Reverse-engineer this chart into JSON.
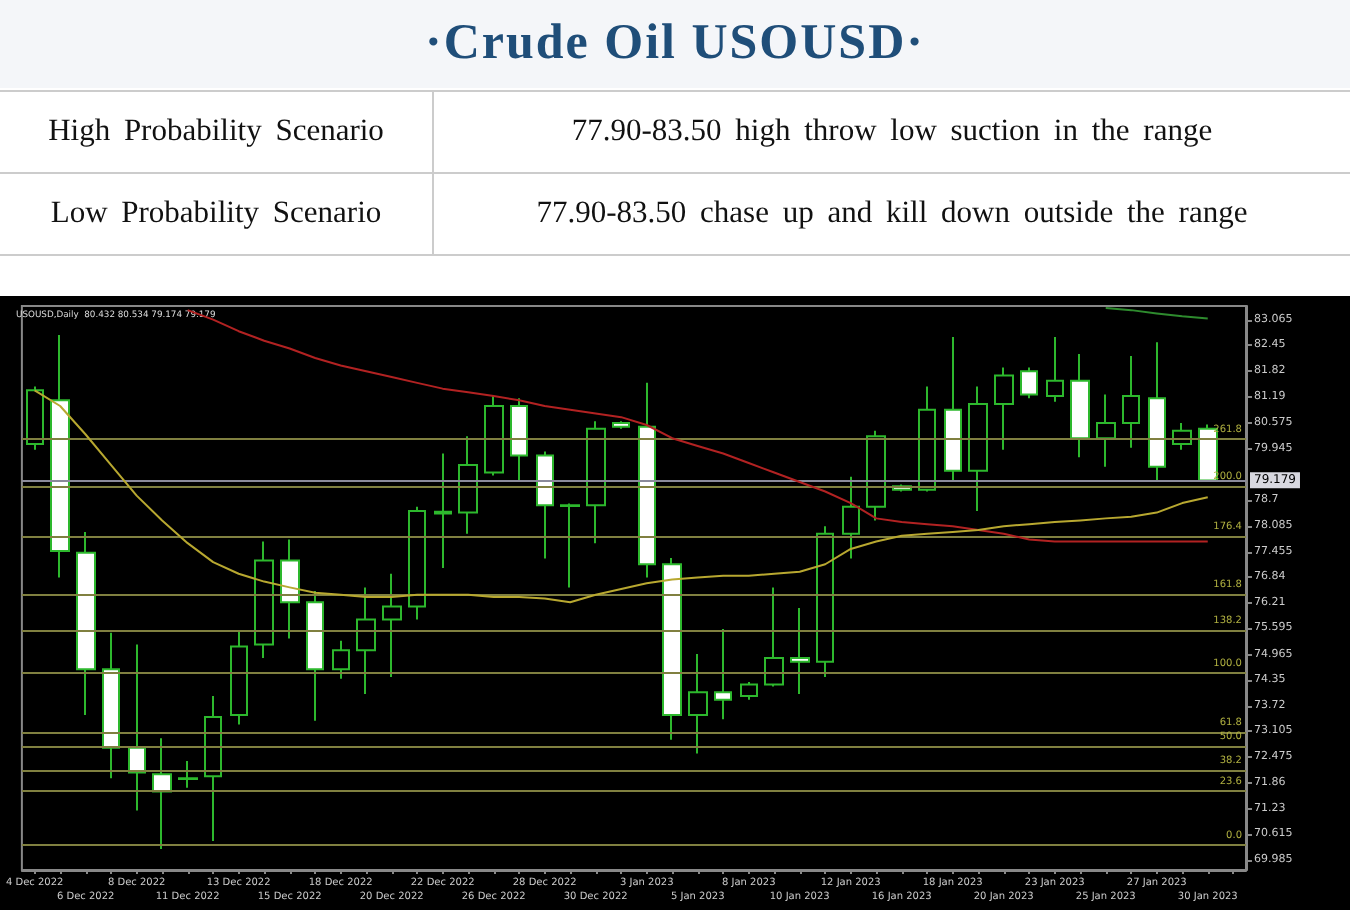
{
  "chart_data": {
    "type": "candlestick",
    "title": "·Crude  Oil  USOUSD·",
    "annotations": [
      "High Probability Scenario",
      "77.90-83.50 high throw low suction in the range",
      "Low Probability Scenario",
      "77.90-83.50 chase up and kill down outside the range",
      "USOUSD,Daily  80.432 80.534 79.174 79.179",
      {
        "text": "261.8",
        "y": 80.18
      },
      {
        "text": "200.0",
        "y": 79.05
      },
      {
        "text": "176.4",
        "y": 77.83
      },
      {
        "text": "161.8",
        "y": 76.44
      },
      {
        "text": "138.2",
        "y": 75.55
      },
      {
        "text": "100.0",
        "y": 74.52
      },
      {
        "text": "61.8",
        "y": 73.1
      },
      {
        "text": "50.0",
        "y": 72.75
      },
      {
        "text": "38.2",
        "y": 72.18
      },
      {
        "text": "23.6",
        "y": 71.67
      },
      {
        "text": "0.0",
        "y": 70.36
      }
    ],
    "categories": [
      "4 Dec 2022",
      null,
      "6 Dec 2022",
      null,
      "8 Dec 2022",
      null,
      "11 Dec 2022",
      null,
      "13 Dec 2022",
      null,
      "15 Dec 2022",
      null,
      "18 Dec 2022",
      null,
      "20 Dec 2022",
      null,
      "22 Dec 2022",
      null,
      "26 Dec 2022",
      null,
      "28 Dec 2022",
      null,
      "30 Dec 2022",
      null,
      "3 Jan 2023",
      null,
      "5 Jan 2023",
      null,
      "8 Jan 2023",
      null,
      "10 Jan 2023",
      null,
      "12 Jan 2023",
      null,
      "16 Jan 2023",
      null,
      "18 Jan 2023",
      null,
      "20 Jan 2023",
      null,
      "23 Jan 2023",
      null,
      "25 Jan 2023",
      null,
      "27 Jan 2023",
      null,
      "30 Jan 2023"
    ],
    "ohlc": [
      [
        80.06,
        81.45,
        79.92,
        81.36
      ],
      [
        81.12,
        82.7,
        76.83,
        77.47
      ],
      [
        77.43,
        77.93,
        73.5,
        74.61
      ],
      [
        74.61,
        75.49,
        71.97,
        72.71
      ],
      [
        72.71,
        75.21,
        71.19,
        72.11
      ],
      [
        72.07,
        72.94,
        70.26,
        71.65
      ],
      [
        71.95,
        72.39,
        71.74,
        71.97
      ],
      [
        72.02,
        73.96,
        70.45,
        73.45
      ],
      [
        73.5,
        75.53,
        73.27,
        75.16
      ],
      [
        75.21,
        77.7,
        74.88,
        77.24
      ],
      [
        77.24,
        77.75,
        75.35,
        76.23
      ],
      [
        76.23,
        76.5,
        73.36,
        74.61
      ],
      [
        74.61,
        75.3,
        74.38,
        75.07
      ],
      [
        75.07,
        76.59,
        74.01,
        75.81
      ],
      [
        75.81,
        76.92,
        74.42,
        76.13
      ],
      [
        76.13,
        78.54,
        75.81,
        78.44
      ],
      [
        78.38,
        79.83,
        77.06,
        78.42
      ],
      [
        78.4,
        80.25,
        77.89,
        79.55
      ],
      [
        79.37,
        81.22,
        79.3,
        80.98
      ],
      [
        80.98,
        81.17,
        79.14,
        79.78
      ],
      [
        79.78,
        79.88,
        77.29,
        78.58
      ],
      [
        78.58,
        78.62,
        76.59,
        78.56
      ],
      [
        78.58,
        80.61,
        77.66,
        80.43
      ],
      [
        80.57,
        80.61,
        80.43,
        80.48
      ],
      [
        80.48,
        81.54,
        76.83,
        77.15
      ],
      [
        77.15,
        77.3,
        72.9,
        73.5
      ],
      [
        73.5,
        74.98,
        72.57,
        74.05
      ],
      [
        74.05,
        75.58,
        73.4,
        73.87
      ],
      [
        73.96,
        74.3,
        73.87,
        74.24
      ],
      [
        74.24,
        76.59,
        74.19,
        74.88
      ],
      [
        74.88,
        76.09,
        74.01,
        74.79
      ],
      [
        74.79,
        78.07,
        74.42,
        77.89
      ],
      [
        77.89,
        79.27,
        77.29,
        78.54
      ],
      [
        78.54,
        80.38,
        78.21,
        80.25
      ],
      [
        79.04,
        79.08,
        78.91,
        78.95
      ],
      [
        78.95,
        81.45,
        78.91,
        80.89
      ],
      [
        80.89,
        82.65,
        79.18,
        79.41
      ],
      [
        79.41,
        81.45,
        78.44,
        81.03
      ],
      [
        81.03,
        81.91,
        79.92,
        81.72
      ],
      [
        81.82,
        81.91,
        81.17,
        81.26
      ],
      [
        81.22,
        82.65,
        81.08,
        81.59
      ],
      [
        81.59,
        82.24,
        79.74,
        80.2
      ],
      [
        80.2,
        81.26,
        79.51,
        80.57
      ],
      [
        80.57,
        82.19,
        79.97,
        81.22
      ],
      [
        81.17,
        82.52,
        79.14,
        79.51
      ],
      [
        80.06,
        80.57,
        79.92,
        80.38
      ],
      [
        80.432,
        80.534,
        79.174,
        79.179
      ]
    ],
    "color": "#2db82d",
    "colors": [
      "#000000",
      "#ffffff",
      "#ffffff",
      "#ffffff",
      "#ffffff",
      "#ffffff",
      "#000000",
      "#000000",
      "#000000",
      "#000000",
      "#ffffff",
      "#ffffff",
      "#000000",
      "#000000",
      "#000000",
      "#000000",
      "#000000",
      "#000000",
      "#000000",
      "#ffffff",
      "#ffffff",
      "#ffffff",
      "#000000",
      "#ffffff",
      "#ffffff",
      "#ffffff",
      "#000000",
      "#ffffff",
      "#000000",
      "#000000",
      "#ffffff",
      "#000000",
      "#000000",
      "#000000",
      "#ffffff",
      "#000000",
      "#ffffff",
      "#000000",
      "#000000",
      "#ffffff",
      "#000000",
      "#ffffff",
      "#000000",
      "#000000",
      "#ffffff",
      "#000000",
      "#ffffff"
    ],
    "series": [
      {
        "type": "line",
        "color": "#b22222",
        "values": [
          null,
          null,
          null,
          null,
          null,
          null,
          83.3,
          83.07,
          82.79,
          82.56,
          82.37,
          82.14,
          81.96,
          81.82,
          81.68,
          81.54,
          81.4,
          81.31,
          81.22,
          81.12,
          80.98,
          80.89,
          80.8,
          80.71,
          80.52,
          80.2,
          80.01,
          79.83,
          79.6,
          79.37,
          79.14,
          78.91,
          78.63,
          78.26,
          78.17,
          78.12,
          78.07,
          77.98,
          77.89,
          77.75,
          77.7,
          77.7,
          77.7,
          77.7,
          77.7,
          77.7,
          77.7
        ]
      },
      {
        "type": "line",
        "color": "#b8a830",
        "values": [
          81.36,
          80.98,
          80.29,
          79.55,
          78.81,
          78.21,
          77.66,
          77.2,
          76.92,
          76.73,
          76.59,
          76.46,
          76.41,
          76.36,
          76.36,
          76.41,
          76.41,
          76.41,
          76.36,
          76.36,
          76.32,
          76.23,
          76.41,
          76.55,
          76.69,
          76.78,
          76.83,
          76.87,
          76.87,
          76.92,
          76.97,
          77.15,
          77.52,
          77.7,
          77.84,
          77.89,
          77.93,
          77.98,
          78.07,
          78.12,
          78.17,
          78.21,
          78.26,
          78.3,
          78.4,
          78.63,
          78.77
        ]
      },
      {
        "type": "line",
        "color": "#2e8b2e",
        "values": [
          null,
          null,
          null,
          null,
          null,
          null,
          null,
          null,
          null,
          null,
          null,
          null,
          null,
          null,
          null,
          null,
          null,
          null,
          null,
          null,
          null,
          null,
          null,
          null,
          null,
          null,
          null,
          null,
          null,
          null,
          null,
          null,
          null,
          null,
          null,
          null,
          null,
          null,
          null,
          null,
          null,
          null,
          83.35,
          83.3,
          83.22,
          83.15,
          83.1
        ]
      }
    ],
    "marker": "none",
    "ylim": [
      69.75,
      83.4
    ],
    "yticks": [
      69.985,
      70.615,
      71.23,
      71.86,
      72.475,
      73.105,
      73.72,
      74.35,
      74.965,
      75.595,
      76.21,
      76.84,
      77.455,
      78.085,
      78.7,
      79.945,
      80.575,
      81.19,
      81.82,
      82.45,
      83.065
    ],
    "ref_lines": [
      {
        "axis": "y",
        "value": 80.18,
        "color": "#808040"
      },
      {
        "axis": "y",
        "value": 79.05,
        "color": "#808040"
      },
      {
        "axis": "y",
        "value": 77.83,
        "color": "#808040"
      },
      {
        "axis": "y",
        "value": 76.44,
        "color": "#808040"
      },
      {
        "axis": "y",
        "value": 75.55,
        "color": "#808040"
      },
      {
        "axis": "y",
        "value": 74.52,
        "color": "#808040"
      },
      {
        "axis": "y",
        "value": 73.1,
        "color": "#808040"
      },
      {
        "axis": "y",
        "value": 72.75,
        "color": "#808040"
      },
      {
        "axis": "y",
        "value": 72.18,
        "color": "#808040"
      },
      {
        "axis": "y",
        "value": 71.67,
        "color": "#808040"
      },
      {
        "axis": "y",
        "value": 70.36,
        "color": "#808040"
      },
      {
        "axis": "y",
        "value": 79.179,
        "label": "79.179",
        "color": "#8a8a9a"
      }
    ],
    "grid": false
  }
}
